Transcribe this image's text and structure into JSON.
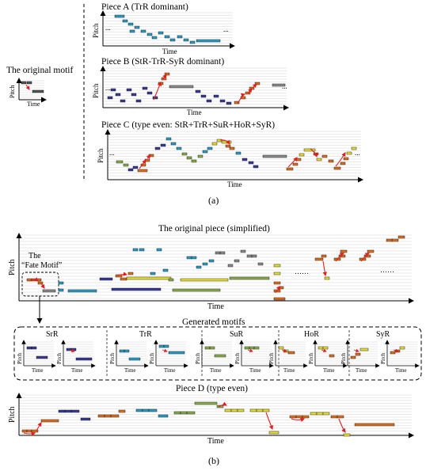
{
  "part_a": {
    "original_motif_label": "The original motif",
    "pitch_label": "Pitch",
    "time_label": "Time",
    "piece_a_title": "Piece A (TrR dominant)",
    "piece_b_title": "Piece B (StR-TrR-SyR dominant)",
    "piece_c_title": "Piece C (type even: StR+TrR+SuR+HoR+SyR)",
    "ellipsis": "...",
    "caption": "(a)"
  },
  "part_b": {
    "original_piece_title": "The original piece (simplified)",
    "fate_motif_the": "The",
    "fate_motif_label": "“Fate Motif”",
    "pitch_label": "Pitch",
    "time_label": "Time",
    "dots": "……",
    "generated_motifs_title": "Generated motifs",
    "motif_types": [
      "SrR",
      "TrR",
      "SuR",
      "HoR",
      "SyR"
    ],
    "piece_d_title": "Piece D (type even)",
    "caption": "(b)"
  },
  "colors": {
    "cyan": "#2b9fc8",
    "navy": "#3b3b9a",
    "yellow": "#e8e030",
    "green": "#8ab04a",
    "orange": "#e0701f",
    "gray": "#8c8c8c",
    "red": "#e02020"
  }
}
